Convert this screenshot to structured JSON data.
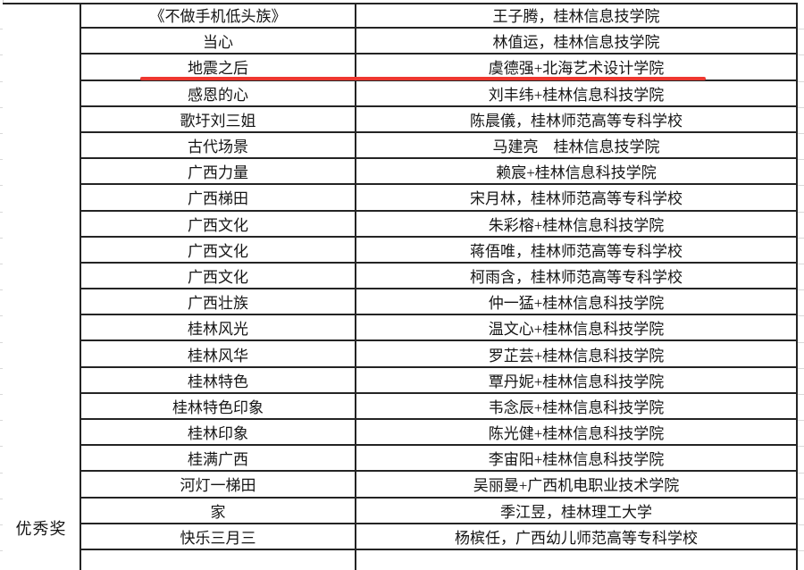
{
  "award": {
    "label": "优秀奖"
  },
  "table": {
    "rows": [
      {
        "title": "《不做手机低头族》",
        "entrant": "王子腾，桂林信息技学院"
      },
      {
        "title": "当心",
        "entrant": "林值运，桂林信息技学院"
      },
      {
        "title": "地震之后",
        "entrant": "虞德强+北海艺术设计学院",
        "highlighted": true
      },
      {
        "title": "感恩的心",
        "entrant": "刘丰纬+桂林信息科技学院"
      },
      {
        "title": "歌圩刘三姐",
        "entrant": "陈晨儀，桂林师范高等专科学校"
      },
      {
        "title": "古代场景",
        "entrant": "马建亮　桂林信息技学院"
      },
      {
        "title": "广西力量",
        "entrant": "赖宸+桂林信息科技学院"
      },
      {
        "title": "广西梯田",
        "entrant": "宋月林，桂林师范高等专科学校"
      },
      {
        "title": "广西文化",
        "entrant": "朱彩榕+桂林信息科技学院"
      },
      {
        "title": "广西文化",
        "entrant": "蒋俉唯，桂林师范高等专科学校"
      },
      {
        "title": "广西文化",
        "entrant": "柯雨含，桂林师范高等专科学校"
      },
      {
        "title": "广西壮族",
        "entrant": "仲一猛+桂林信息科技学院"
      },
      {
        "title": "桂林风光",
        "entrant": "温文心+桂林信息科技学院"
      },
      {
        "title": "桂林风华",
        "entrant": "罗芷芸+桂林信息科技学院"
      },
      {
        "title": "桂林特色",
        "entrant": "覃丹妮+桂林信息科技学院"
      },
      {
        "title": "桂林特色印象",
        "entrant": "韦念辰+桂林信息科技学院"
      },
      {
        "title": "桂林印象",
        "entrant": "陈光健+桂林信息科技学院"
      },
      {
        "title": "桂满广西",
        "entrant": "李宙阳+桂林信息科技学院"
      },
      {
        "title": "河灯一梯田",
        "entrant": "吴丽曼+广西机电职业技术学院"
      },
      {
        "title": "家",
        "entrant": "季江昱，桂林理工大学"
      },
      {
        "title": "快乐三月三",
        "entrant": "杨槟任，广西幼儿师范高等专科学校"
      }
    ],
    "highlight_row_index": 2
  },
  "annotation": {
    "red_underline_color": "#ee372f"
  },
  "colors": {
    "table_border": "#242424",
    "faint_gridline": "#d6d6d6",
    "text": "#151515"
  }
}
